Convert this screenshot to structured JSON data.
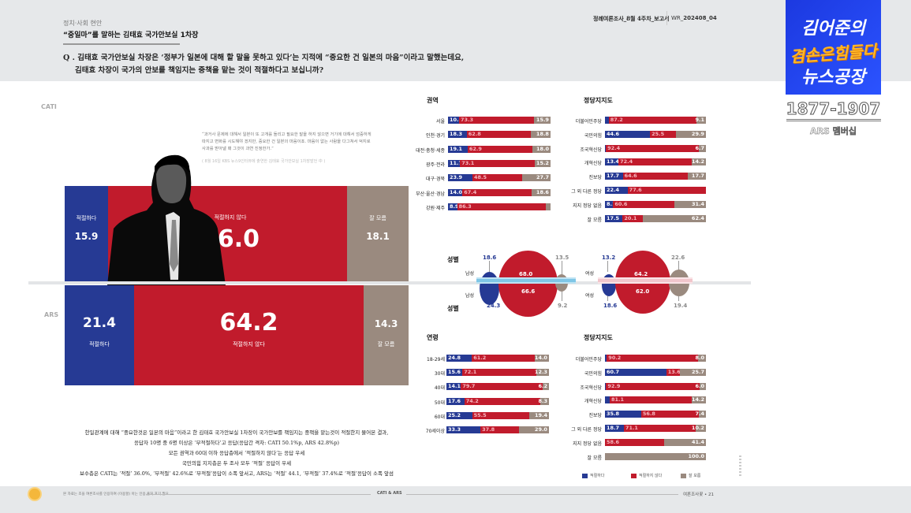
{
  "header": {
    "category": "정치·사회 현안",
    "title": "“중일마”를 말하는 김태효 국가안보실 1차장",
    "question_line1": "Q . 김태효 국가안보실 차장은 ‘정부가 일본에 대해 할 말을 못하고 있다’는 지적에 “중요한 건 일본의 마음”이라고 말했는데요,",
    "question_line2": "김태효 차장이 국가의 안보를 책임지는 중책을 맡는 것이 적절하다고 보십니까?",
    "report_name": "정례여론조사_8월 4주차_보고서",
    "report_code_prefix": "WR_",
    "report_code": "202408_04"
  },
  "overlay": {
    "logo_line1": "김어준의",
    "logo_line2": "겸손은힘들다",
    "logo_line3": "뉴스공장",
    "phone": "1877-1907",
    "phone_sub": "ARS 멤버십"
  },
  "quote": {
    "text": "“과거사 문제에 대해서 일본이 또 고개를 돌리고 필요한 말을 하지 않으면 거기에 대해서 엄중하게 따지고 변화를 시도해야 겠지만, 중요한 건 일본의 마음이죠. 마음이 없는 사람을 다그쳐서 억지로 사과를 받아낼 때 그것이 과연 진정한가.”",
    "source": "( 8월 16일 KBS 뉴스9인터뷰에 출연한 김태효 국가안보실 1차장발언 中 )"
  },
  "main": {
    "cati_label": "CATI",
    "ars_label": "ARS",
    "cati": {
      "appropriate_label": "적절하다",
      "appropriate": "15.9",
      "inappropriate_label": "적절하지 않다",
      "inappropriate": "66.0",
      "unknown_label": "잘 모름",
      "unknown": "18.1"
    },
    "ars": {
      "appropriate_label": "적절하다",
      "appropriate": "21.4",
      "inappropriate_label": "적절하지 않다",
      "inappropriate": "64.2",
      "unknown_label": "잘 모름",
      "unknown": "14.3"
    }
  },
  "summary": {
    "line1": "한일관계에 대해 “중요한것은 일본의 마음”이라고 한 김태효 국가안보실 1차장이 국가안보를 책임지는 중책을 맡는것이 적절한지 물어본 결과,",
    "line2": "응답자 10명 중 6명 이상은 ‘부적절하다’고 응답(응답간 격차: CATI 50.1%p, ARS 42.8%p)",
    "line3": "모든 권역과 60대 이하 응답층에서 ‘적절하지 않다’는 응답 우세",
    "line4": "국민의힘 지지층은 두 조사 모두 ‘적절’ 응답이 우세",
    "line5": "보수층은 CATI는 ‘적절’ 36.0%, ‘부적절’ 42.6%로 ‘부적절’응답이 소폭 앞서고, ARS는 ‘적절’ 44.1, ‘부적절’ 37.4%로 ‘적절’응답이 소폭 앞섬"
  },
  "sections": {
    "region_title": "권역",
    "party_title": "정당지지도",
    "gender_title": "성별",
    "age_title": "연령",
    "male": "남성",
    "female": "여성"
  },
  "legend": {
    "appropriate": "적절하다",
    "inappropriate": "적절하지 않다",
    "unknown": "잘 모름"
  },
  "footer": {
    "note": "본 자료는 조을 여론조사를 인용하여 (이용할) 아는 인용,출처 표기 필요",
    "center": "CATI & ARS",
    "page": "여론조사꽃 • 21"
  },
  "colors": {
    "appropriate": "#263a94",
    "inappropriate": "#c11b2c",
    "unknown": "#9a8a7f"
  },
  "chart_data": [
    {
      "type": "bar",
      "title": "CATI - 김태효 1차장 중책 적절성",
      "categories": [
        "적절하다",
        "적절하지 않다",
        "잘 모름"
      ],
      "values": [
        15.9,
        66.0,
        18.1
      ]
    },
    {
      "type": "bar",
      "title": "ARS - 김태효 1차장 중책 적절성",
      "categories": [
        "적절하다",
        "적절하지 않다",
        "잘 모름"
      ],
      "values": [
        21.4,
        64.2,
        14.3
      ]
    },
    {
      "type": "bar",
      "title": "권역 (CATI)",
      "categories": [
        "서울",
        "인천·경기",
        "대전·충청·세종",
        "광주·전라",
        "대구·경북",
        "부산·울산·경남",
        "강원·제주"
      ],
      "series": [
        {
          "name": "적절하다",
          "values": [
            10.8,
            18.3,
            19.1,
            11.7,
            23.9,
            14.0,
            8.9
          ]
        },
        {
          "name": "적절하지 않다",
          "values": [
            73.3,
            62.8,
            62.9,
            73.1,
            48.5,
            67.4,
            86.3
          ]
        },
        {
          "name": "잘 모름",
          "values": [
            15.9,
            18.8,
            18.0,
            15.2,
            27.7,
            18.6,
            4.8
          ]
        }
      ]
    },
    {
      "type": "bar",
      "title": "정당지지도 (CATI)",
      "categories": [
        "더불어민주당",
        "국민의힘",
        "조국혁신당",
        "개혁신당",
        "진보당",
        "그 외 다른 정당",
        "지지 정당 없음",
        "잘 모름"
      ],
      "series": [
        {
          "name": "적절하다",
          "values": [
            3.7,
            44.6,
            0.9,
            13.4,
            17.7,
            22.4,
            8.1,
            17.5
          ]
        },
        {
          "name": "적절하지 않다",
          "values": [
            87.2,
            25.5,
            92.4,
            72.4,
            64.6,
            77.6,
            60.6,
            20.1
          ]
        },
        {
          "name": "잘 모름",
          "values": [
            9.1,
            29.9,
            6.7,
            14.2,
            17.7,
            0.0,
            31.4,
            62.4
          ]
        }
      ]
    },
    {
      "type": "scatter",
      "title": "성별 (bubble)",
      "categories": [
        "남성 CATI",
        "여성 CATI",
        "남성 ARS",
        "여성 ARS"
      ],
      "series": [
        {
          "name": "적절하다",
          "values": [
            18.6,
            13.2,
            24.3,
            18.6
          ]
        },
        {
          "name": "적절하지 않다",
          "values": [
            68.0,
            64.2,
            66.6,
            62.0
          ]
        },
        {
          "name": "잘 모름",
          "values": [
            13.5,
            22.6,
            9.2,
            19.4
          ]
        }
      ]
    },
    {
      "type": "bar",
      "title": "연령 (ARS)",
      "categories": [
        "18-29세",
        "30대",
        "40대",
        "50대",
        "60대",
        "70세이상"
      ],
      "series": [
        {
          "name": "적절하다",
          "values": [
            24.8,
            15.6,
            14.1,
            17.6,
            25.2,
            33.3
          ]
        },
        {
          "name": "적절하지 않다",
          "values": [
            61.2,
            72.1,
            79.7,
            74.2,
            55.5,
            37.8
          ]
        },
        {
          "name": "잘 모름",
          "values": [
            14.0,
            12.3,
            6.2,
            8.3,
            19.4,
            29.0
          ]
        }
      ]
    },
    {
      "type": "bar",
      "title": "정당지지도 (ARS)",
      "categories": [
        "더불어민주당",
        "국민의힘",
        "조국혁신당",
        "개혁신당",
        "진보당",
        "그 외 다른 정당",
        "지지 정당 없음",
        "잘 모름"
      ],
      "series": [
        {
          "name": "적절하다",
          "values": [
            1.8,
            60.7,
            1.1,
            4.7,
            35.8,
            18.7,
            0.0,
            0.0
          ]
        },
        {
          "name": "적절하지 않다",
          "values": [
            90.2,
            13.6,
            92.9,
            81.1,
            56.8,
            71.1,
            58.6,
            0.0
          ]
        },
        {
          "name": "잘 모름",
          "values": [
            8.0,
            25.7,
            6.0,
            14.2,
            7.4,
            10.2,
            41.4,
            100.0
          ]
        }
      ]
    }
  ],
  "region": [
    {
      "label": "서울",
      "a": "10.8",
      "b": "73.3",
      "c": "15.9",
      "wa": 10.8,
      "wb": 73.3,
      "wc": 15.9
    },
    {
      "label": "인천·경기",
      "a": "18.3",
      "b": "62.8",
      "c": "18.8",
      "wa": 18.3,
      "wb": 62.8,
      "wc": 18.9
    },
    {
      "label": "대전·충청·세종",
      "a": "19.1",
      "b": "62.9",
      "c": "18.0",
      "wa": 19.1,
      "wb": 62.9,
      "wc": 18.0
    },
    {
      "label": "광주·전라",
      "a": "11.7",
      "b": "73.1",
      "c": "15.2",
      "wa": 11.7,
      "wb": 73.1,
      "wc": 15.2
    },
    {
      "label": "대구·경북",
      "a": "23.9",
      "b": "48.5",
      "c": "27.7",
      "wa": 23.8,
      "wb": 48.5,
      "wc": 27.7
    },
    {
      "label": "부산·울산·경남",
      "a": "14.0",
      "b": "67.4",
      "c": "18.6",
      "wa": 14.0,
      "wb": 67.4,
      "wc": 18.6
    },
    {
      "label": "강원·제주",
      "a": "8.9",
      "b": "86.3",
      "c": "",
      "wa": 8.9,
      "wb": 86.3,
      "wc": 4.8
    }
  ],
  "party_cati": [
    {
      "label": "더불어민주당",
      "a": "",
      "b": "87.2",
      "c": "9.1",
      "wa": 3.7,
      "wb": 87.2,
      "wc": 9.1
    },
    {
      "label": "국민의힘",
      "a": "44.6",
      "b": "25.5",
      "c": "29.9",
      "wa": 44.6,
      "wb": 25.5,
      "wc": 29.9
    },
    {
      "label": "조국혁신당",
      "a": "",
      "b": "92.4",
      "c": "6.7",
      "wa": 0.9,
      "wb": 92.4,
      "wc": 6.7
    },
    {
      "label": "개혁신당",
      "a": "13.4",
      "b": "72.4",
      "c": "14.2",
      "wa": 13.4,
      "wb": 72.4,
      "wc": 14.2
    },
    {
      "label": "진보당",
      "a": "17.7",
      "b": "64.6",
      "c": "17.7",
      "wa": 17.7,
      "wb": 64.6,
      "wc": 17.7
    },
    {
      "label": "그 외 다른 정당",
      "a": "22.4",
      "b": "77.6",
      "c": "",
      "wa": 22.4,
      "wb": 77.6,
      "wc": 0
    },
    {
      "label": "지지 정당 없음",
      "a": "8.1",
      "b": "60.6",
      "c": "31.4",
      "wa": 8.1,
      "wb": 60.5,
      "wc": 31.4
    },
    {
      "label": "잘 모름",
      "a": "17.5",
      "b": "20.1",
      "c": "62.4",
      "wa": 17.5,
      "wb": 20.1,
      "wc": 62.4
    }
  ],
  "age": [
    {
      "label": "18-29세",
      "a": "24.8",
      "b": "61.2",
      "c": "14.0",
      "wa": 24.8,
      "wb": 61.2,
      "wc": 14.0
    },
    {
      "label": "30대",
      "a": "15.6",
      "b": "72.1",
      "c": "12.3",
      "wa": 15.6,
      "wb": 72.1,
      "wc": 12.3
    },
    {
      "label": "40대",
      "a": "14.1",
      "b": "79.7",
      "c": "6.2",
      "wa": 14.1,
      "wb": 79.7,
      "wc": 6.2
    },
    {
      "label": "50대",
      "a": "17.6",
      "b": "74.2",
      "c": "8.3",
      "wa": 17.5,
      "wb": 74.2,
      "wc": 8.3
    },
    {
      "label": "60대",
      "a": "25.2",
      "b": "55.5",
      "c": "19.4",
      "wa": 25.1,
      "wb": 55.5,
      "wc": 19.4
    },
    {
      "label": "70세이상",
      "a": "33.3",
      "b": "37.8",
      "c": "29.0",
      "wa": 33.2,
      "wb": 37.8,
      "wc": 29.0
    }
  ],
  "party_ars": [
    {
      "label": "더불어민주당",
      "a": "",
      "b": "90.2",
      "c": "8.0",
      "wa": 1.8,
      "wb": 90.2,
      "wc": 8.0
    },
    {
      "label": "국민의힘",
      "a": "60.7",
      "b": "13.6",
      "c": "25.7",
      "wa": 60.7,
      "wb": 13.6,
      "wc": 25.7
    },
    {
      "label": "조국혁신당",
      "a": "",
      "b": "92.9",
      "c": "6.0",
      "wa": 1.1,
      "wb": 92.9,
      "wc": 6.0
    },
    {
      "label": "개혁신당",
      "a": "",
      "b": "81.1",
      "c": "14.2",
      "wa": 4.7,
      "wb": 81.1,
      "wc": 14.2
    },
    {
      "label": "진보당",
      "a": "35.8",
      "b": "56.8",
      "c": "7.4",
      "wa": 35.8,
      "wb": 56.8,
      "wc": 7.4
    },
    {
      "label": "그 외 다른 정당",
      "a": "18.7",
      "b": "71.1",
      "c": "10.2",
      "wa": 18.7,
      "wb": 71.1,
      "wc": 10.2
    },
    {
      "label": "지지 정당 없음",
      "a": "",
      "b": "58.6",
      "c": "41.4",
      "wa": 0,
      "wb": 58.6,
      "wc": 41.4
    },
    {
      "label": "잘 모름",
      "a": "",
      "b": "",
      "c": "100.0",
      "wa": 0,
      "wb": 0,
      "wc": 100
    }
  ],
  "gender": {
    "male_cati": {
      "a": "18.6",
      "b": "68.0",
      "c": "13.5"
    },
    "male_ars": {
      "a": "24.3",
      "b": "66.6",
      "c": "9.2"
    },
    "female_cati": {
      "a": "13.2",
      "b": "64.2",
      "c": "22.6"
    },
    "female_ars": {
      "a": "18.6",
      "b": "62.0",
      "c": "19.4"
    }
  }
}
